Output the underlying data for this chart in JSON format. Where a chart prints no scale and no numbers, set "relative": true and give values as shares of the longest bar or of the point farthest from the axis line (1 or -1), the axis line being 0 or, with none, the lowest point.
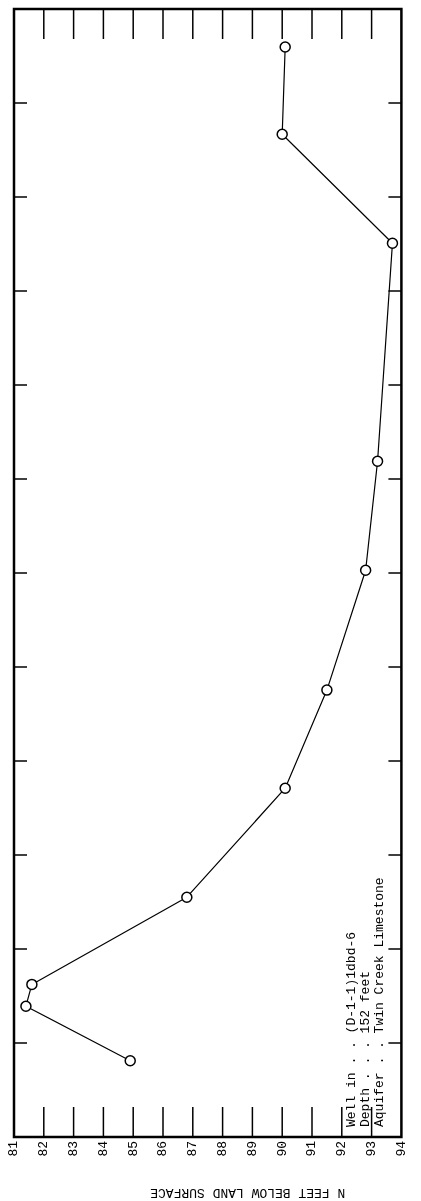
{
  "chart_data": {
    "type": "line",
    "relative": true,
    "xlabel": "N FEET BELOW LAND SURFACE",
    "x": [
      84.9,
      81.4,
      81.6,
      86.8,
      90.1,
      91.5,
      92.8,
      93.2,
      93.7,
      90.0,
      90.1
    ],
    "series": [
      {
        "color": "#000000",
        "values": [
          0.07,
          0.12,
          0.14,
          0.22,
          0.32,
          0.41,
          0.52,
          0.62,
          0.82,
          0.92,
          1
        ]
      }
    ],
    "xlim": [
      81,
      94
    ],
    "xticks": [
      81,
      82,
      83,
      84,
      85,
      86,
      87,
      88,
      89,
      90,
      91,
      92,
      93,
      94
    ],
    "tick_labels": "x",
    "grid": false,
    "legend": false,
    "marker": "circle",
    "line_style": "solid",
    "annotations": [
      "Well in . . (D-1-1)1dbd-6",
      "Depth . . . 152 feet",
      "Aquifer . . Twin Creek Limestone"
    ]
  }
}
